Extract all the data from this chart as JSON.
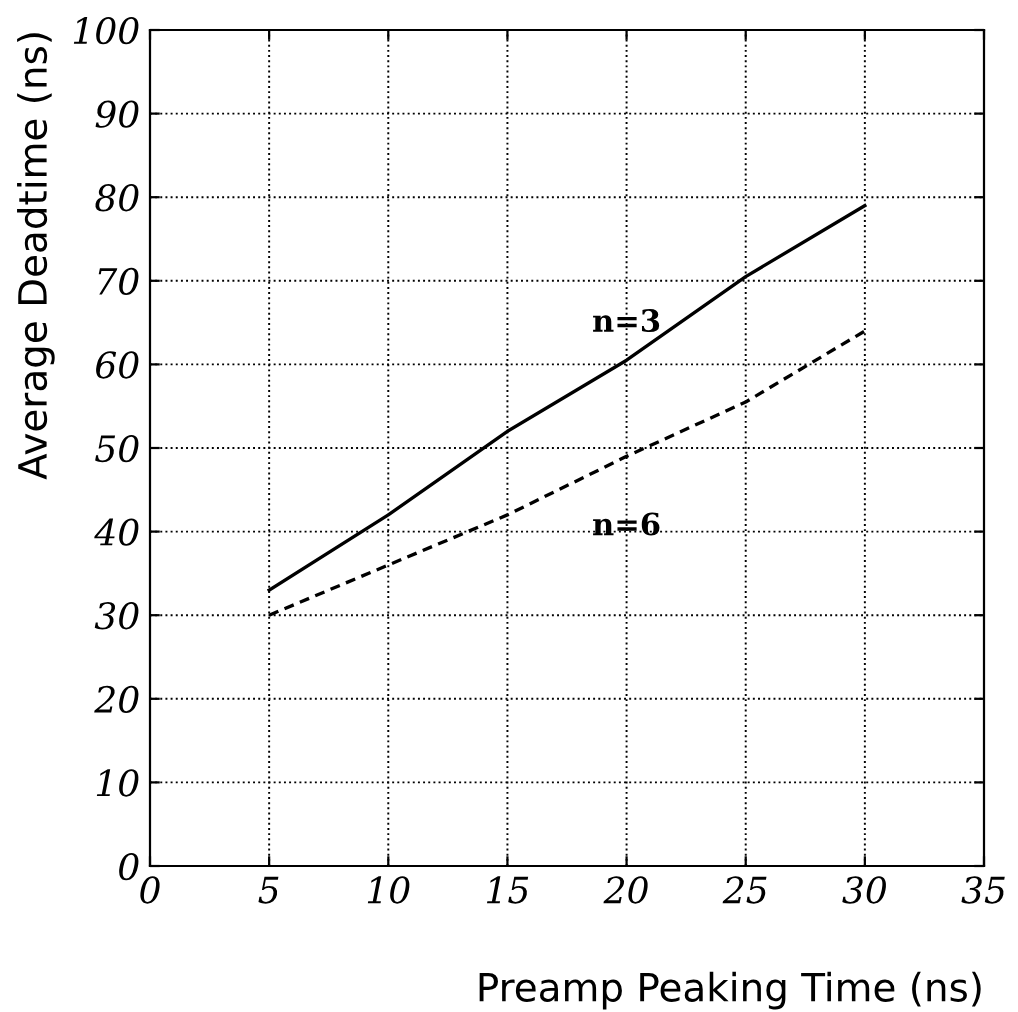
{
  "chart_data": {
    "type": "line",
    "xlabel": "Preamp Peaking Time (ns)",
    "ylabel": "Average Deadtime (ns)",
    "x": [
      5,
      10,
      15,
      20,
      25,
      30
    ],
    "series": [
      {
        "name": "n=3",
        "color": "#000000",
        "line_style": "solid",
        "values": [
          33,
          42,
          52,
          60.5,
          70.5,
          79
        ]
      },
      {
        "name": "n=6",
        "color": "#000000",
        "line_style": "dashed",
        "values": [
          30,
          36,
          42,
          49,
          55.5,
          64
        ]
      }
    ],
    "xlim": [
      0,
      35
    ],
    "xticks": [
      0,
      5,
      10,
      15,
      20,
      25,
      30,
      35
    ],
    "ylim": [
      0,
      100
    ],
    "yticks": [
      0,
      10,
      20,
      30,
      40,
      50,
      60,
      70,
      80,
      90,
      100
    ],
    "grid": true,
    "marker": "none",
    "legend": false
  }
}
